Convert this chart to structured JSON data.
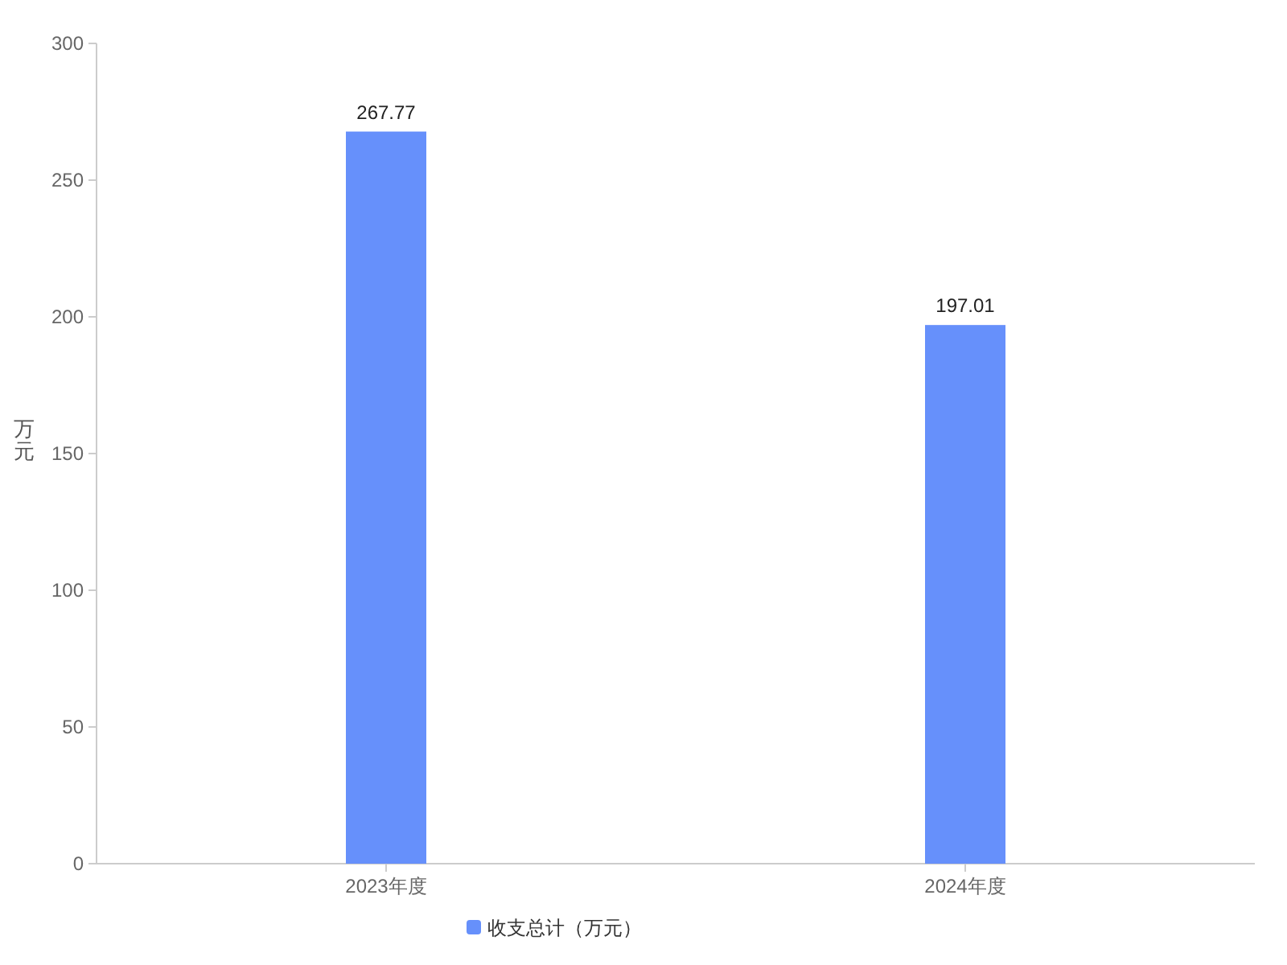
{
  "chart_data": {
    "type": "bar",
    "ylabel": "万元",
    "categories": [
      "2023年度",
      "2024年度"
    ],
    "series": [
      {
        "name": "收支总计（万元）",
        "color": "#6690fb",
        "values": [
          267.77,
          197.01
        ]
      }
    ],
    "ylim": [
      0,
      300
    ],
    "yticks": [
      0,
      50,
      100,
      150,
      200,
      250,
      300
    ],
    "data_labels": true,
    "legend": "bottom"
  }
}
